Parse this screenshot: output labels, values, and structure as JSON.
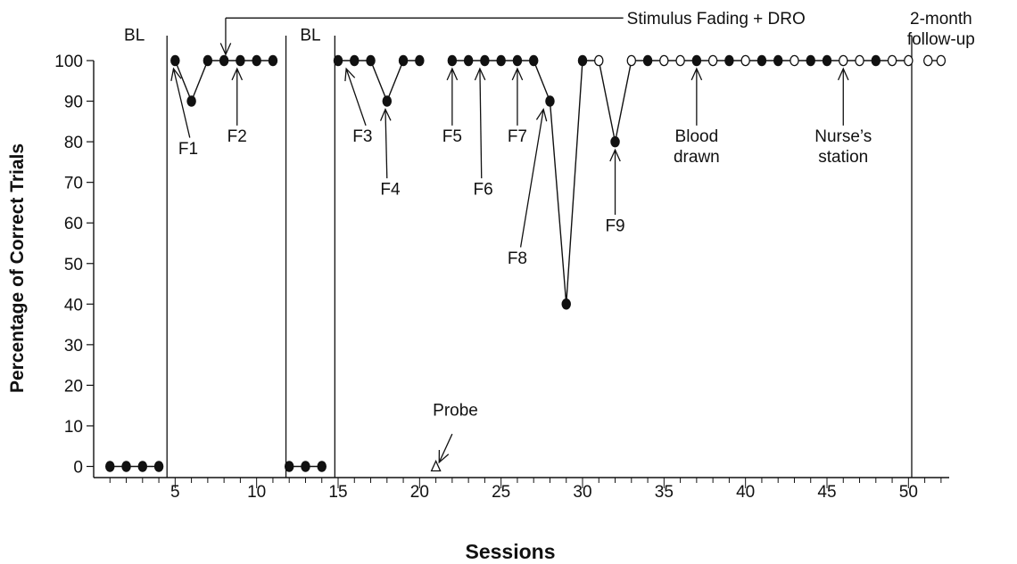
{
  "chart_data": {
    "type": "line",
    "xlabel": "Sessions",
    "ylabel": "Percentage of Correct Trials",
    "xlim": [
      0,
      52.5
    ],
    "ylim": [
      0,
      100
    ],
    "x_ticks": [
      5,
      10,
      15,
      20,
      25,
      30,
      35,
      40,
      45,
      50
    ],
    "y_ticks": [
      0,
      10,
      20,
      30,
      40,
      50,
      60,
      70,
      80,
      90,
      100
    ],
    "phase_lines": [
      4.5,
      11.8,
      14.8,
      50.2
    ],
    "phase_labels": [
      {
        "text": "BL",
        "x": 2.5,
        "y": 106.5
      },
      {
        "text": "BL",
        "x": 13.3,
        "y": 106.5
      },
      {
        "text": "Stimulus Fading + DRO",
        "x": 32.5,
        "y": 110.5
      },
      {
        "text": "2-month",
        "x": 52.0,
        "y": 110.5
      },
      {
        "text": "follow-up",
        "x": 52.0,
        "y": 105.5
      }
    ],
    "series": [
      {
        "segment": "baseline-1",
        "points": [
          {
            "x": 1,
            "y": 0,
            "filled": true
          },
          {
            "x": 2,
            "y": 0,
            "filled": true
          },
          {
            "x": 3,
            "y": 0,
            "filled": true
          },
          {
            "x": 4,
            "y": 0,
            "filled": true
          }
        ]
      },
      {
        "segment": "treatment-1",
        "points": [
          {
            "x": 5,
            "y": 100,
            "filled": true
          },
          {
            "x": 6,
            "y": 90,
            "filled": true
          },
          {
            "x": 7,
            "y": 100,
            "filled": true
          },
          {
            "x": 8,
            "y": 100,
            "filled": true
          },
          {
            "x": 9,
            "y": 100,
            "filled": true
          },
          {
            "x": 10,
            "y": 100,
            "filled": true
          },
          {
            "x": 11,
            "y": 100,
            "filled": true
          }
        ]
      },
      {
        "segment": "baseline-2",
        "points": [
          {
            "x": 12,
            "y": 0,
            "filled": true
          },
          {
            "x": 13,
            "y": 0,
            "filled": true
          },
          {
            "x": 14,
            "y": 0,
            "filled": true
          }
        ]
      },
      {
        "segment": "treatment-2a",
        "points": [
          {
            "x": 15,
            "y": 100,
            "filled": true
          },
          {
            "x": 16,
            "y": 100,
            "filled": true
          },
          {
            "x": 17,
            "y": 100,
            "filled": true
          },
          {
            "x": 18,
            "y": 90,
            "filled": true
          },
          {
            "x": 19,
            "y": 100,
            "filled": true
          },
          {
            "x": 20,
            "y": 100,
            "filled": true
          }
        ]
      },
      {
        "segment": "treatment-2b",
        "points": [
          {
            "x": 22,
            "y": 100,
            "filled": true
          },
          {
            "x": 23,
            "y": 100,
            "filled": true
          },
          {
            "x": 24,
            "y": 100,
            "filled": true
          },
          {
            "x": 25,
            "y": 100,
            "filled": true
          },
          {
            "x": 26,
            "y": 100,
            "filled": true
          },
          {
            "x": 27,
            "y": 100,
            "filled": true
          },
          {
            "x": 28,
            "y": 90,
            "filled": true
          },
          {
            "x": 29,
            "y": 40,
            "filled": true
          },
          {
            "x": 30,
            "y": 100,
            "filled": true
          },
          {
            "x": 31,
            "y": 100,
            "filled": false
          },
          {
            "x": 32,
            "y": 80,
            "filled": true
          },
          {
            "x": 33,
            "y": 100,
            "filled": false
          },
          {
            "x": 34,
            "y": 100,
            "filled": true
          },
          {
            "x": 35,
            "y": 100,
            "filled": false
          },
          {
            "x": 36,
            "y": 100,
            "filled": false
          },
          {
            "x": 37,
            "y": 100,
            "filled": true
          },
          {
            "x": 38,
            "y": 100,
            "filled": false
          },
          {
            "x": 39,
            "y": 100,
            "filled": true
          },
          {
            "x": 40,
            "y": 100,
            "filled": false
          },
          {
            "x": 41,
            "y": 100,
            "filled": true
          },
          {
            "x": 42,
            "y": 100,
            "filled": true
          },
          {
            "x": 43,
            "y": 100,
            "filled": false
          },
          {
            "x": 44,
            "y": 100,
            "filled": true
          },
          {
            "x": 45,
            "y": 100,
            "filled": true
          },
          {
            "x": 46,
            "y": 100,
            "filled": false
          },
          {
            "x": 47,
            "y": 100,
            "filled": false
          },
          {
            "x": 48,
            "y": 100,
            "filled": true
          },
          {
            "x": 49,
            "y": 100,
            "filled": false
          },
          {
            "x": 50,
            "y": 100,
            "filled": false
          }
        ]
      },
      {
        "segment": "follow-up",
        "points": [
          {
            "x": 51.2,
            "y": 100,
            "filled": false
          },
          {
            "x": 52.0,
            "y": 100,
            "filled": false
          }
        ]
      }
    ],
    "probe": {
      "x": 21,
      "y": 0,
      "marker": "open-triangle",
      "label": "Probe"
    },
    "annotations": [
      {
        "lines": [
          "F1"
        ],
        "x": 5.8,
        "y": 77
      },
      {
        "lines": [
          "F2"
        ],
        "x": 8.8,
        "y": 80
      },
      {
        "lines": [
          "F3"
        ],
        "x": 16.5,
        "y": 80
      },
      {
        "lines": [
          "F4"
        ],
        "x": 18.2,
        "y": 67
      },
      {
        "lines": [
          "F5"
        ],
        "x": 22.0,
        "y": 80
      },
      {
        "lines": [
          "F6"
        ],
        "x": 23.9,
        "y": 67
      },
      {
        "lines": [
          "F7"
        ],
        "x": 26.0,
        "y": 80
      },
      {
        "lines": [
          "F8"
        ],
        "x": 26.0,
        "y": 50
      },
      {
        "lines": [
          "F9"
        ],
        "x": 32.0,
        "y": 58
      },
      {
        "lines": [
          "Blood",
          "drawn"
        ],
        "x": 37.0,
        "y": 80
      },
      {
        "lines": [
          "Nurse’s",
          "station"
        ],
        "x": 46.0,
        "y": 80
      }
    ],
    "arrows": [
      {
        "from": [
          5.9,
          81
        ],
        "to": [
          4.9,
          98
        ]
      },
      {
        "from": [
          8.8,
          84
        ],
        "to": [
          8.8,
          98
        ]
      },
      {
        "from": [
          16.7,
          84
        ],
        "to": [
          15.5,
          98
        ]
      },
      {
        "from": [
          18.0,
          71
        ],
        "to": [
          17.9,
          88
        ]
      },
      {
        "from": [
          22.0,
          84
        ],
        "to": [
          22.0,
          98
        ]
      },
      {
        "from": [
          23.8,
          71
        ],
        "to": [
          23.7,
          98
        ]
      },
      {
        "from": [
          26.0,
          84
        ],
        "to": [
          26.0,
          98
        ]
      },
      {
        "from": [
          26.2,
          54
        ],
        "to": [
          27.6,
          88
        ]
      },
      {
        "from": [
          32.0,
          62
        ],
        "to": [
          32.0,
          78
        ]
      },
      {
        "from": [
          37.0,
          84
        ],
        "to": [
          37.0,
          98
        ]
      },
      {
        "from": [
          46.0,
          84
        ],
        "to": [
          46.0,
          98
        ]
      },
      {
        "from": [
          22.0,
          8
        ],
        "to": [
          21.2,
          1
        ]
      }
    ],
    "bracket": {
      "from_x": 32.5,
      "corner_x": 8.1,
      "y": 110.5,
      "arrow_to_y": 101.5
    }
  }
}
